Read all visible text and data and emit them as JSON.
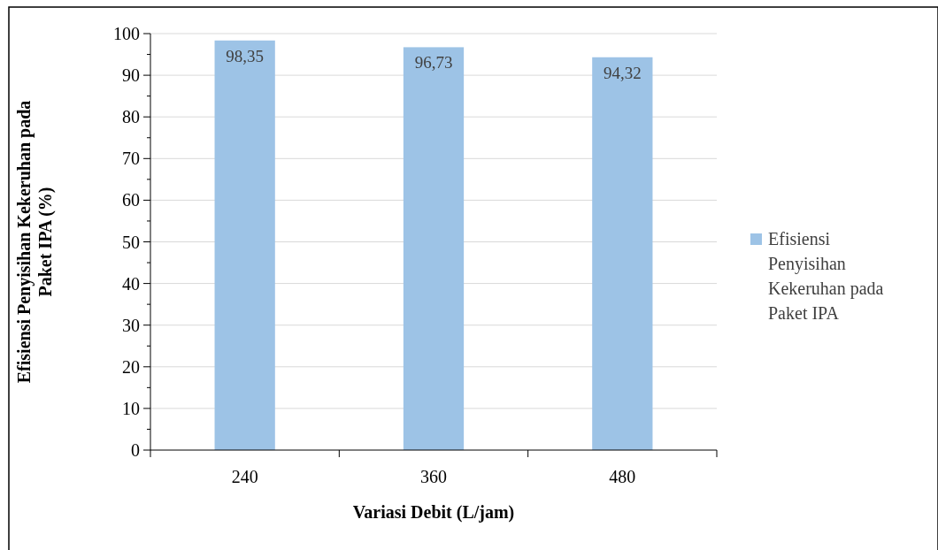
{
  "chart_data": {
    "type": "bar",
    "xlabel": "Variasi Debit (L/jam)",
    "ylabel": "Efisiensi Penyisihan Kekeruhan pada Paket IPA (%)",
    "categories": [
      "240",
      "360",
      "480"
    ],
    "series": [
      {
        "name": "Efisiensi Penyisihan Kekeruhan pada Paket IPA",
        "color": "#9dc3e6",
        "values": [
          98.35,
          96.73,
          94.32
        ],
        "value_labels": [
          "98,35",
          "96,73",
          "94,32"
        ]
      }
    ],
    "ylim": [
      0,
      100
    ],
    "yticks": [
      0,
      {
        "value": 5,
        "label": null
      },
      10,
      {
        "value": 15,
        "label": null
      },
      20,
      {
        "value": 25,
        "label": null
      },
      30,
      {
        "value": 35,
        "label": null
      },
      40,
      {
        "value": 45,
        "label": null
      },
      50,
      {
        "value": 55,
        "label": null
      },
      60,
      {
        "value": 65,
        "label": null
      },
      70,
      {
        "value": 75,
        "label": null
      },
      80,
      {
        "value": 85,
        "label": null
      },
      90,
      {
        "value": 95,
        "label": null
      },
      100
    ],
    "grid": "y",
    "legend": "right"
  }
}
